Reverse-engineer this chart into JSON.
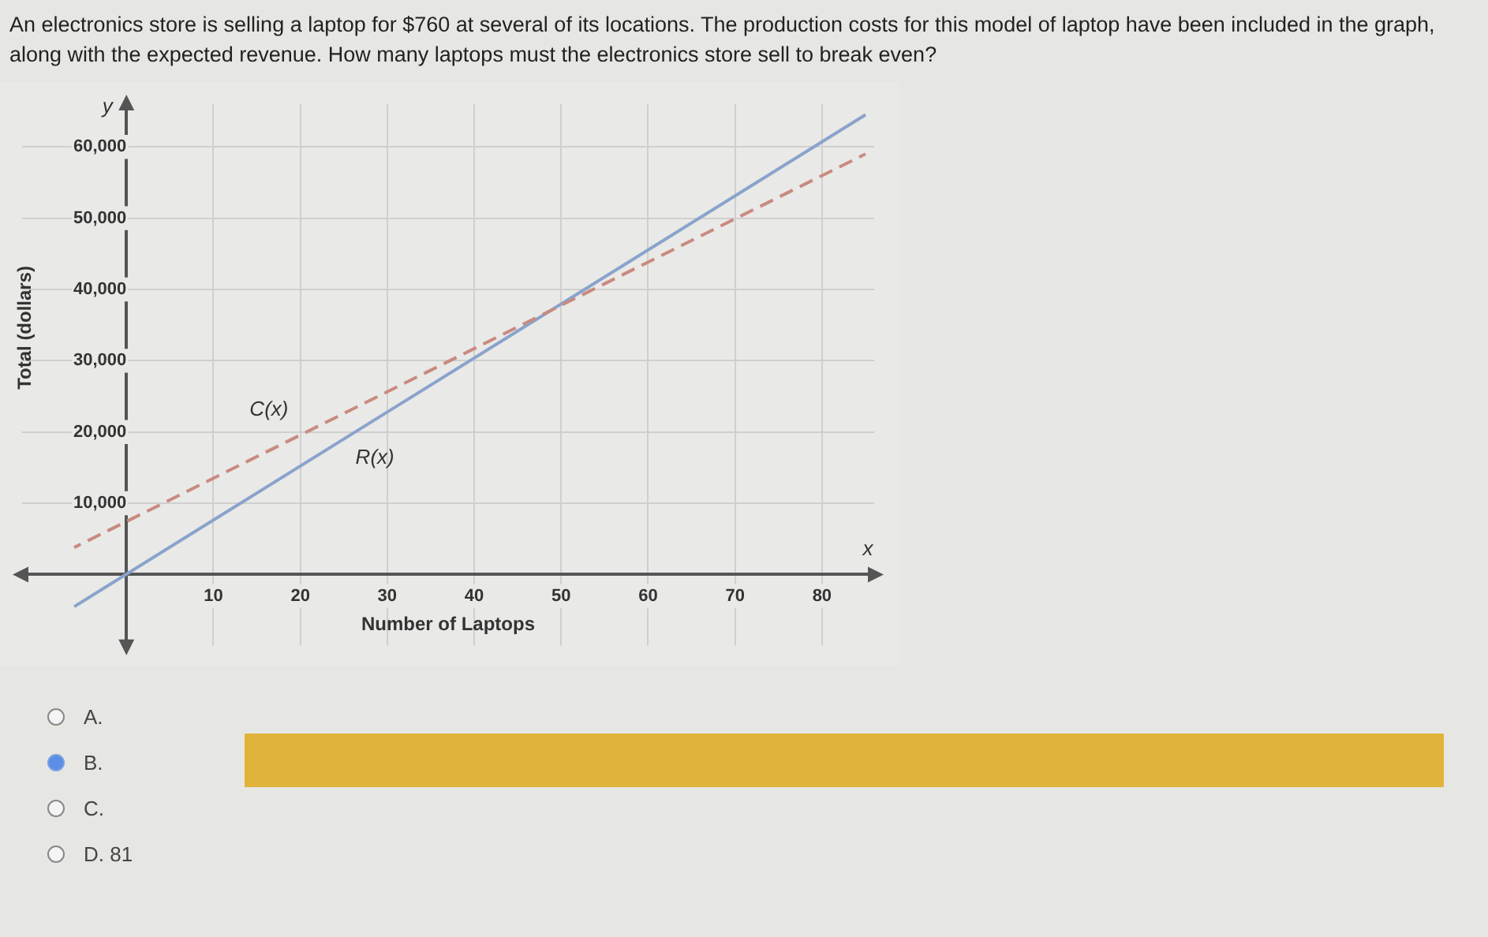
{
  "chart_data": {
    "type": "line",
    "title": "An electronics store is selling a laptop for $760 at several of its locations. The production costs for this model of laptop have been included in the graph, along with the expected revenue. How many laptops must the electronics store sell to break even?",
    "xlabel": "Number of Laptops",
    "ylabel": "Total (dollars)",
    "xlim": [
      -12,
      86
    ],
    "ylim": [
      -10000,
      66000
    ],
    "xticks": [
      10,
      20,
      30,
      40,
      50,
      60,
      70,
      80
    ],
    "yticks": [
      {
        "value": 10000,
        "label": "10,000"
      },
      {
        "value": 20000,
        "label": "20,000"
      },
      {
        "value": 30000,
        "label": "30,000"
      },
      {
        "value": 40000,
        "label": "40,000"
      },
      {
        "value": 50000,
        "label": "50,000"
      },
      {
        "value": 60000,
        "label": "60,000"
      }
    ],
    "grid": true,
    "legend": false,
    "marker": "none",
    "x": [
      -6,
      85
    ],
    "series": [
      {
        "name": "C(x)",
        "color": "#c98a80",
        "line_style": "dashed",
        "values": [
          3800,
          59000
        ]
      },
      {
        "name": "R(x)",
        "color": "#8aa3cc",
        "line_style": "solid",
        "values": [
          -4500,
          64500
        ]
      }
    ],
    "annotations": [
      "y",
      "x",
      "A.",
      "B.",
      "C.",
      "D.   81"
    ]
  }
}
